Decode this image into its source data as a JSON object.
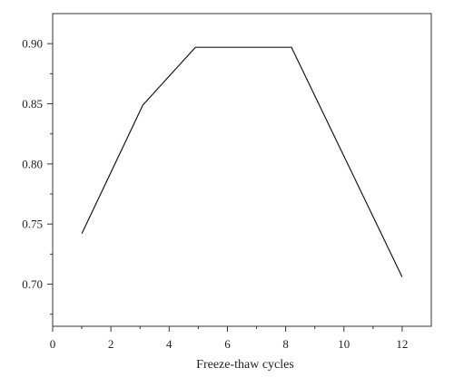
{
  "chart_data": {
    "type": "line",
    "title": "",
    "xlabel": "Freeze-thaw cycles",
    "ylabel": "",
    "xlim": [
      0,
      13
    ],
    "ylim": [
      0.665,
      0.925
    ],
    "x_ticks": [
      0,
      2,
      4,
      6,
      8,
      10,
      12
    ],
    "x_tick_labels": [
      "0",
      "2",
      "4",
      "6",
      "8",
      "10",
      "12"
    ],
    "y_ticks": [
      0.7,
      0.75,
      0.8,
      0.85,
      0.9
    ],
    "y_tick_labels": [
      "0.70",
      "0.75",
      "0.80",
      "0.85",
      "0.90"
    ],
    "grid": false,
    "legend": "none",
    "series": [
      {
        "x": [
          1,
          3.1,
          4.9,
          8.2,
          12
        ],
        "y": [
          0.742,
          0.849,
          0.897,
          0.897,
          0.706
        ]
      }
    ],
    "colors": {
      "line": "#1a1a1a",
      "axis": "#333333"
    }
  }
}
